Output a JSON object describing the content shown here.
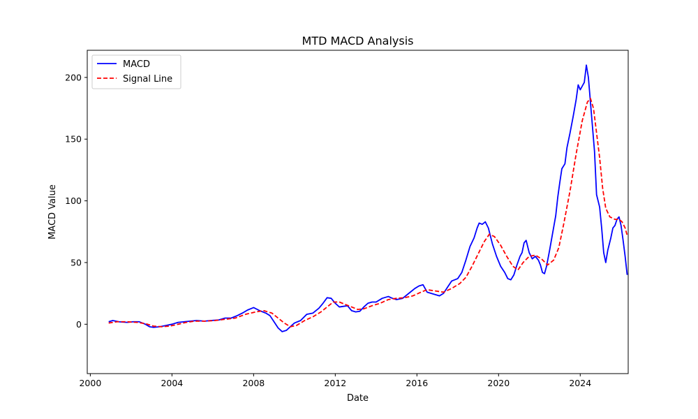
{
  "chart_data": {
    "type": "line",
    "title": "MTD MACD Analysis",
    "xlabel": "Date",
    "ylabel": "MACD Value",
    "xlim": [
      1999.85,
      2026.35
    ],
    "ylim": [
      -40,
      222
    ],
    "x_ticks": [
      2000,
      2004,
      2008,
      2012,
      2016,
      2020,
      2024
    ],
    "y_ticks": [
      0,
      50,
      100,
      150,
      200
    ],
    "grid": false,
    "legend_position": "top-left",
    "series": [
      {
        "name": "MACD",
        "color": "#0000ff",
        "style": "solid",
        "points": [
          [
            2000.9,
            2
          ],
          [
            2001.1,
            3
          ],
          [
            2001.4,
            2
          ],
          [
            2001.8,
            1.5
          ],
          [
            2002.1,
            2
          ],
          [
            2002.4,
            2
          ],
          [
            2002.7,
            0
          ],
          [
            2002.9,
            -2
          ],
          [
            2003.1,
            -2.5
          ],
          [
            2003.4,
            -2
          ],
          [
            2003.7,
            -1
          ],
          [
            2004.0,
            0
          ],
          [
            2004.3,
            1.5
          ],
          [
            2004.6,
            2
          ],
          [
            2004.9,
            2.5
          ],
          [
            2005.2,
            3
          ],
          [
            2005.6,
            2.5
          ],
          [
            2005.9,
            3
          ],
          [
            2006.3,
            3.5
          ],
          [
            2006.6,
            5
          ],
          [
            2006.9,
            5
          ],
          [
            2007.2,
            7
          ],
          [
            2007.5,
            9.5
          ],
          [
            2007.7,
            11.5
          ],
          [
            2008.0,
            13.5
          ],
          [
            2008.3,
            11
          ],
          [
            2008.6,
            9
          ],
          [
            2008.8,
            7
          ],
          [
            2009.0,
            2
          ],
          [
            2009.2,
            -3
          ],
          [
            2009.4,
            -6
          ],
          [
            2009.6,
            -5
          ],
          [
            2009.8,
            -2
          ],
          [
            2010.0,
            1
          ],
          [
            2010.3,
            3
          ],
          [
            2010.6,
            8
          ],
          [
            2010.9,
            9
          ],
          [
            2011.2,
            13
          ],
          [
            2011.4,
            17
          ],
          [
            2011.6,
            21.5
          ],
          [
            2011.8,
            21
          ],
          [
            2012.0,
            17
          ],
          [
            2012.2,
            14
          ],
          [
            2012.4,
            14.5
          ],
          [
            2012.6,
            15
          ],
          [
            2012.8,
            11
          ],
          [
            2013.0,
            10
          ],
          [
            2013.2,
            10.5
          ],
          [
            2013.4,
            14
          ],
          [
            2013.6,
            17
          ],
          [
            2013.8,
            18
          ],
          [
            2014.0,
            18
          ],
          [
            2014.3,
            21
          ],
          [
            2014.6,
            22.5
          ],
          [
            2014.8,
            21
          ],
          [
            2015.0,
            20
          ],
          [
            2015.3,
            21
          ],
          [
            2015.6,
            25
          ],
          [
            2015.9,
            29
          ],
          [
            2016.1,
            31
          ],
          [
            2016.3,
            32
          ],
          [
            2016.5,
            26
          ],
          [
            2016.7,
            25
          ],
          [
            2016.9,
            24
          ],
          [
            2017.1,
            23
          ],
          [
            2017.3,
            25
          ],
          [
            2017.5,
            30
          ],
          [
            2017.7,
            35
          ],
          [
            2018.0,
            37
          ],
          [
            2018.2,
            42
          ],
          [
            2018.4,
            52
          ],
          [
            2018.6,
            63
          ],
          [
            2018.8,
            70
          ],
          [
            2018.95,
            78
          ],
          [
            2019.05,
            82
          ],
          [
            2019.2,
            81
          ],
          [
            2019.35,
            83
          ],
          [
            2019.5,
            78
          ],
          [
            2019.7,
            65
          ],
          [
            2019.9,
            55
          ],
          [
            2020.1,
            47
          ],
          [
            2020.3,
            42
          ],
          [
            2020.45,
            37
          ],
          [
            2020.6,
            36
          ],
          [
            2020.75,
            40
          ],
          [
            2020.9,
            48
          ],
          [
            2021.05,
            55
          ],
          [
            2021.15,
            58
          ],
          [
            2021.25,
            66
          ],
          [
            2021.35,
            68
          ],
          [
            2021.5,
            58
          ],
          [
            2021.65,
            53
          ],
          [
            2021.8,
            55
          ],
          [
            2021.95,
            52
          ],
          [
            2022.05,
            48
          ],
          [
            2022.15,
            42
          ],
          [
            2022.25,
            41
          ],
          [
            2022.35,
            47
          ],
          [
            2022.5,
            60
          ],
          [
            2022.65,
            74
          ],
          [
            2022.8,
            88
          ],
          [
            2022.9,
            103
          ],
          [
            2023.0,
            115
          ],
          [
            2023.1,
            126
          ],
          [
            2023.25,
            130
          ],
          [
            2023.35,
            143
          ],
          [
            2023.5,
            155
          ],
          [
            2023.65,
            168
          ],
          [
            2023.8,
            182
          ],
          [
            2023.9,
            194
          ],
          [
            2024.0,
            190
          ],
          [
            2024.1,
            193
          ],
          [
            2024.2,
            196
          ],
          [
            2024.3,
            210
          ],
          [
            2024.4,
            200
          ],
          [
            2024.55,
            170
          ],
          [
            2024.7,
            140
          ],
          [
            2024.8,
            105
          ],
          [
            2024.95,
            95
          ],
          [
            2025.05,
            78
          ],
          [
            2025.15,
            58
          ],
          [
            2025.25,
            50
          ],
          [
            2025.35,
            60
          ],
          [
            2025.5,
            70
          ],
          [
            2025.6,
            78
          ],
          [
            2025.7,
            80
          ],
          [
            2025.8,
            85
          ],
          [
            2025.9,
            87
          ],
          [
            2026.0,
            80
          ],
          [
            2026.1,
            68
          ],
          [
            2026.2,
            55
          ],
          [
            2026.3,
            40
          ]
        ]
      },
      {
        "name": "Signal Line",
        "color": "#ff0000",
        "style": "dashed",
        "points": [
          [
            2000.9,
            1
          ],
          [
            2001.3,
            2
          ],
          [
            2001.8,
            2
          ],
          [
            2002.3,
            1.5
          ],
          [
            2002.7,
            0.5
          ],
          [
            2003.1,
            -1.5
          ],
          [
            2003.5,
            -2
          ],
          [
            2003.9,
            -1.5
          ],
          [
            2004.3,
            0
          ],
          [
            2004.7,
            1.5
          ],
          [
            2005.1,
            2.5
          ],
          [
            2005.6,
            2.5
          ],
          [
            2006.1,
            3
          ],
          [
            2006.6,
            4
          ],
          [
            2007.1,
            5
          ],
          [
            2007.6,
            8
          ],
          [
            2008.1,
            10
          ],
          [
            2008.5,
            11
          ],
          [
            2008.9,
            9
          ],
          [
            2009.2,
            5
          ],
          [
            2009.5,
            1
          ],
          [
            2009.8,
            -2
          ],
          [
            2010.1,
            -1
          ],
          [
            2010.5,
            3
          ],
          [
            2010.9,
            6
          ],
          [
            2011.3,
            10
          ],
          [
            2011.6,
            14
          ],
          [
            2011.9,
            18
          ],
          [
            2012.2,
            18
          ],
          [
            2012.5,
            16
          ],
          [
            2012.8,
            14
          ],
          [
            2013.1,
            12
          ],
          [
            2013.4,
            12.5
          ],
          [
            2013.8,
            15
          ],
          [
            2014.2,
            17
          ],
          [
            2014.6,
            20
          ],
          [
            2015.0,
            21
          ],
          [
            2015.4,
            21.5
          ],
          [
            2015.8,
            23
          ],
          [
            2016.2,
            26
          ],
          [
            2016.5,
            28
          ],
          [
            2016.9,
            27
          ],
          [
            2017.3,
            26
          ],
          [
            2017.7,
            29
          ],
          [
            2018.1,
            33
          ],
          [
            2018.4,
            38
          ],
          [
            2018.7,
            47
          ],
          [
            2019.0,
            57
          ],
          [
            2019.3,
            67
          ],
          [
            2019.55,
            73
          ],
          [
            2019.8,
            71
          ],
          [
            2020.1,
            64
          ],
          [
            2020.4,
            55
          ],
          [
            2020.7,
            47
          ],
          [
            2020.95,
            44
          ],
          [
            2021.2,
            50
          ],
          [
            2021.5,
            55
          ],
          [
            2021.8,
            56
          ],
          [
            2022.1,
            53
          ],
          [
            2022.4,
            48
          ],
          [
            2022.7,
            52
          ],
          [
            2022.95,
            62
          ],
          [
            2023.2,
            82
          ],
          [
            2023.5,
            108
          ],
          [
            2023.8,
            138
          ],
          [
            2024.1,
            165
          ],
          [
            2024.35,
            180
          ],
          [
            2024.5,
            183
          ],
          [
            2024.65,
            175
          ],
          [
            2024.8,
            155
          ],
          [
            2024.95,
            135
          ],
          [
            2025.1,
            110
          ],
          [
            2025.25,
            94
          ],
          [
            2025.45,
            87
          ],
          [
            2025.7,
            85
          ],
          [
            2025.9,
            85
          ],
          [
            2026.05,
            83
          ],
          [
            2026.2,
            78
          ],
          [
            2026.3,
            72
          ]
        ]
      }
    ]
  }
}
